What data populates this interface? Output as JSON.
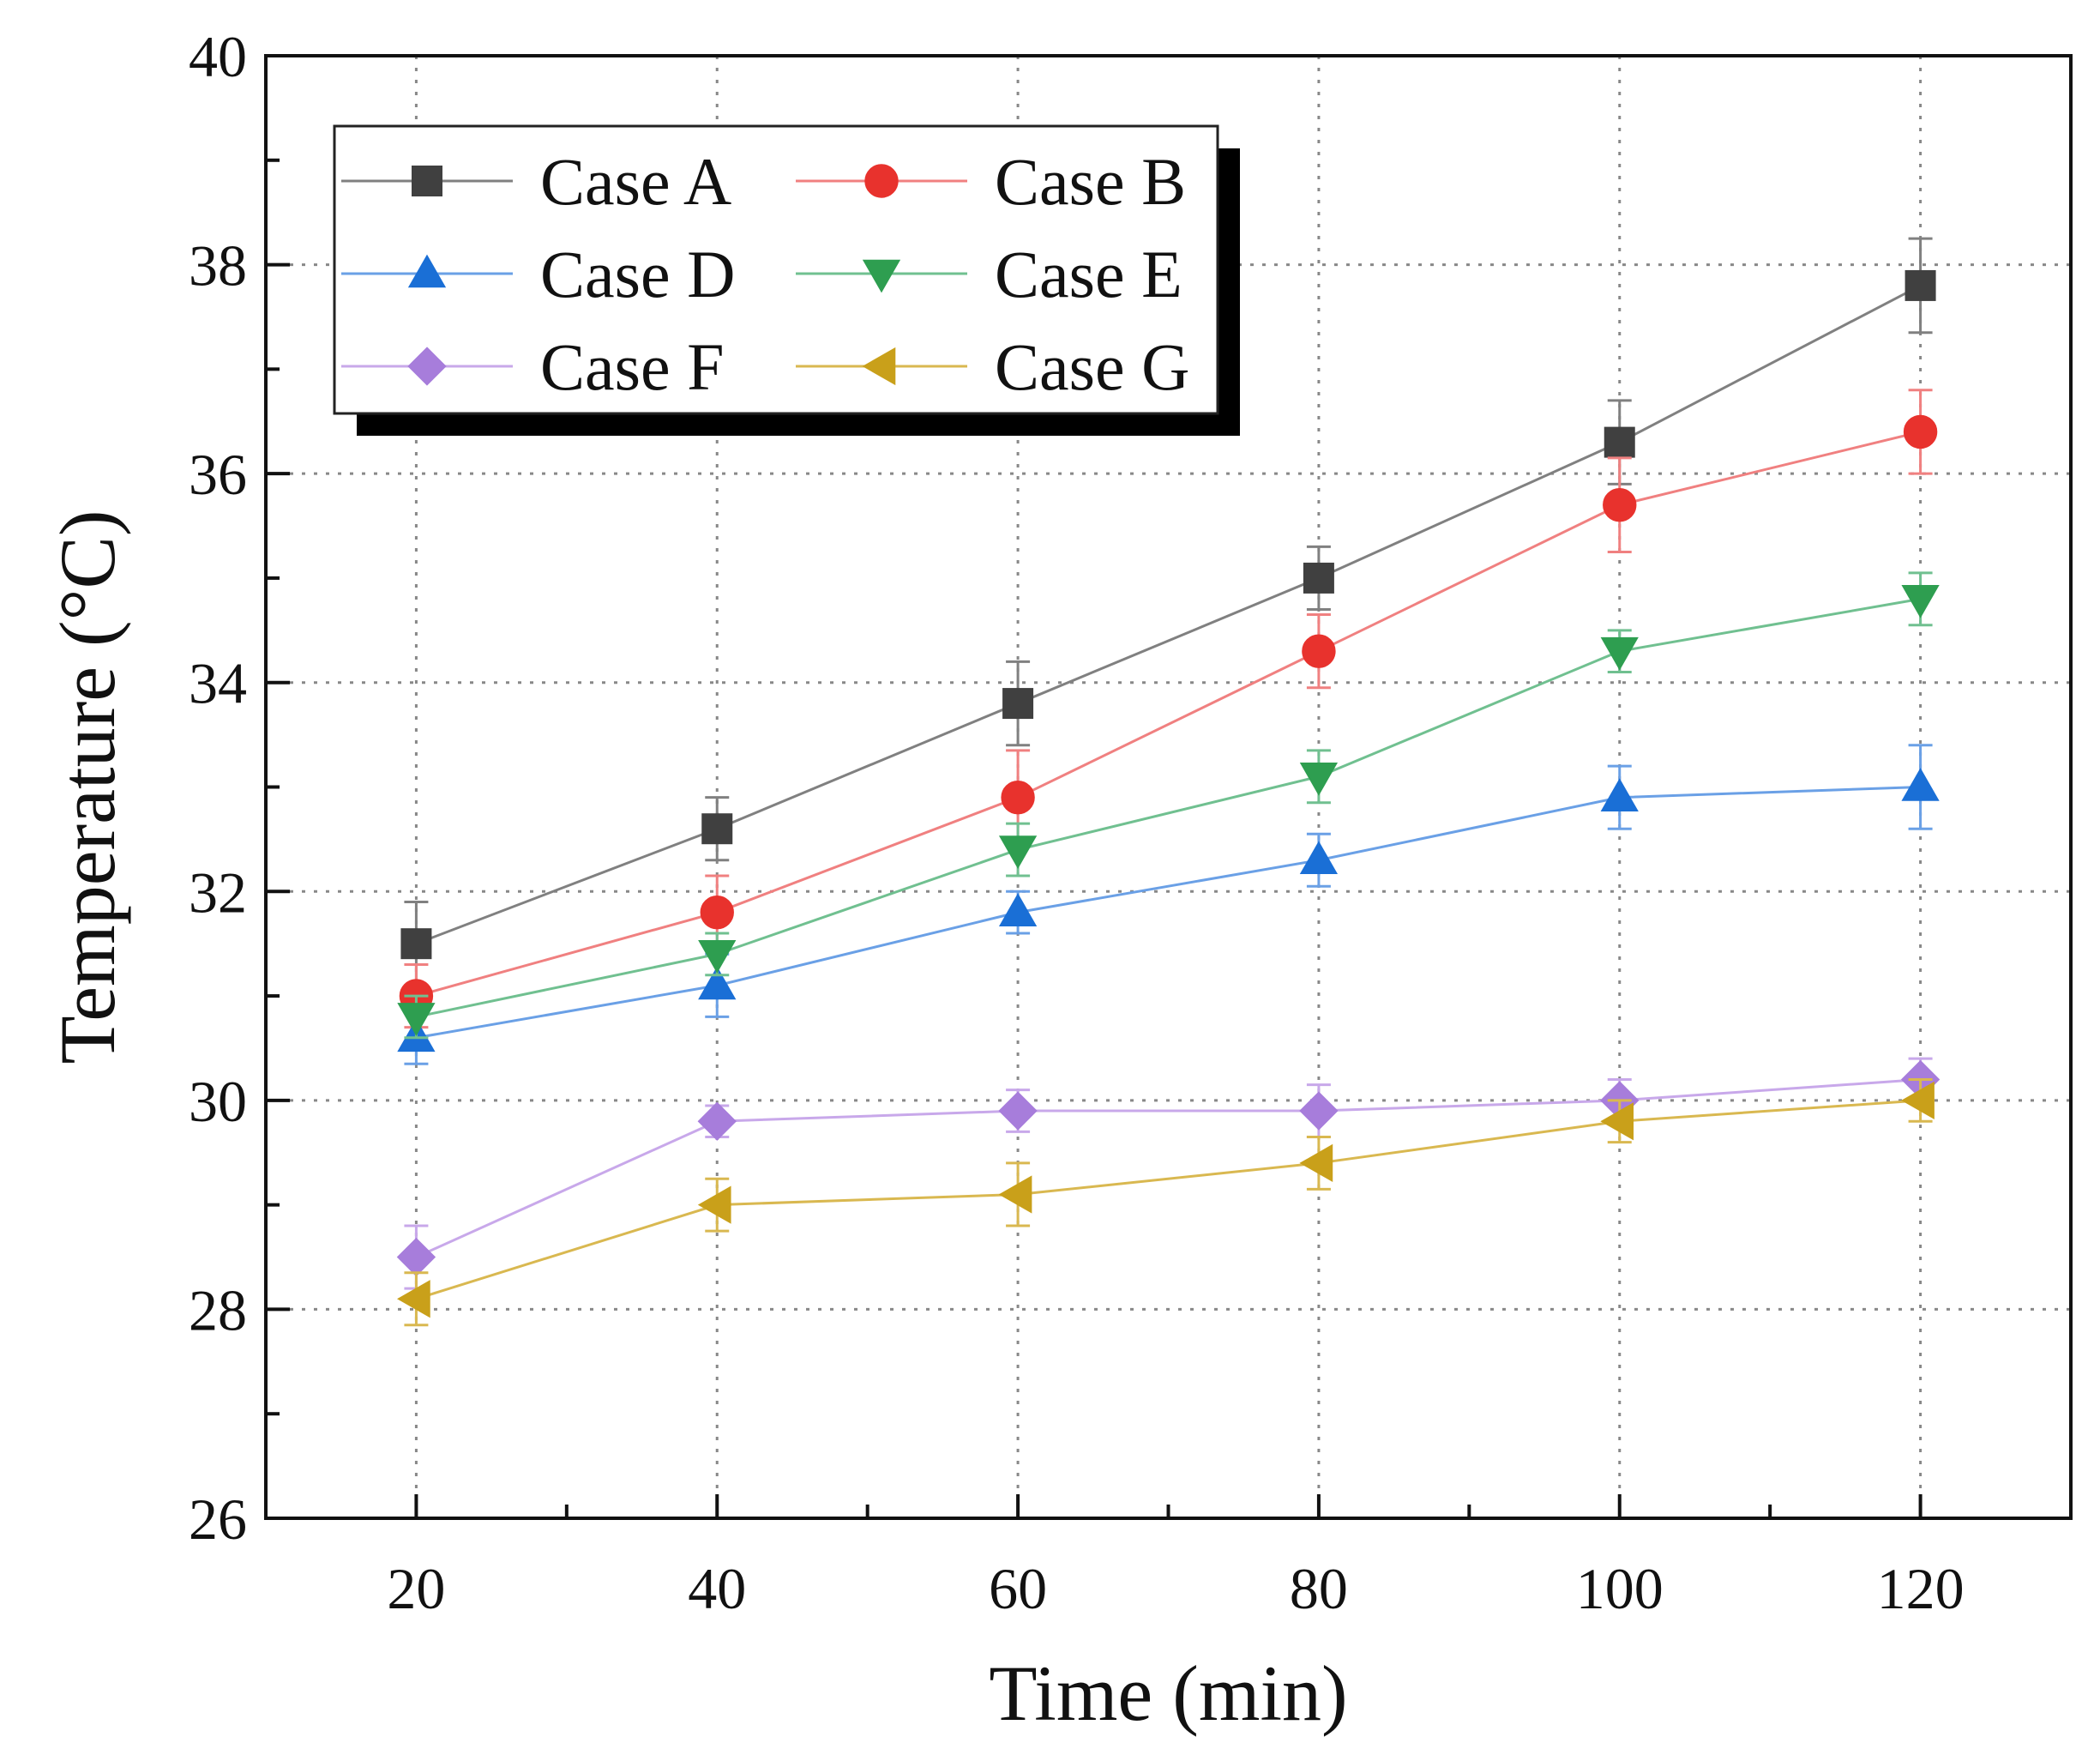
{
  "chart_data": {
    "type": "line",
    "xlabel": "Time (min)",
    "ylabel": "Temperature (°C)",
    "xlim": [
      10,
      130
    ],
    "ylim": [
      26,
      40
    ],
    "x_ticks": [
      20,
      40,
      60,
      80,
      100,
      120
    ],
    "y_ticks": [
      26,
      28,
      30,
      32,
      34,
      36,
      38,
      40
    ],
    "x_minor_ticks": [
      10,
      30,
      50,
      70,
      90,
      110,
      130
    ],
    "y_minor_ticks": [
      27,
      29,
      31,
      33,
      35,
      37,
      39
    ],
    "grid": true,
    "legend_position": "top-left",
    "x": [
      20,
      40,
      60,
      80,
      100,
      120
    ],
    "series": [
      {
        "name": "Case A",
        "marker": "square",
        "color": "#404040",
        "line_color": "#808080",
        "values": [
          31.5,
          32.6,
          33.8,
          35.0,
          36.3,
          37.8
        ],
        "errors": [
          0.4,
          0.3,
          0.4,
          0.3,
          0.4,
          0.45
        ]
      },
      {
        "name": "Case B",
        "marker": "circle",
        "color": "#e8322d",
        "line_color": "#f08080",
        "values": [
          31.0,
          31.8,
          32.9,
          34.3,
          35.7,
          36.4
        ],
        "errors": [
          0.3,
          0.35,
          0.45,
          0.35,
          0.45,
          0.4
        ]
      },
      {
        "name": "Case D",
        "marker": "triangle-up",
        "color": "#1a6fd6",
        "line_color": "#6aa0e6",
        "values": [
          30.6,
          31.1,
          31.8,
          32.3,
          32.9,
          33.0
        ],
        "errors": [
          0.25,
          0.3,
          0.2,
          0.25,
          0.3,
          0.4
        ]
      },
      {
        "name": "Case E",
        "marker": "triangle-down",
        "color": "#2e9e50",
        "line_color": "#70c090",
        "values": [
          30.8,
          31.4,
          32.4,
          33.1,
          34.3,
          34.8
        ],
        "errors": [
          0.2,
          0.2,
          0.25,
          0.25,
          0.2,
          0.25
        ]
      },
      {
        "name": "Case F",
        "marker": "diamond",
        "color": "#a77ddb",
        "line_color": "#c8a8ea",
        "values": [
          28.5,
          29.8,
          29.9,
          29.9,
          30.0,
          30.2
        ],
        "errors": [
          0.3,
          0.15,
          0.2,
          0.25,
          0.2,
          0.2
        ]
      },
      {
        "name": "Case G",
        "marker": "triangle-left",
        "color": "#c9a01a",
        "line_color": "#d9b850",
        "values": [
          28.1,
          29.0,
          29.1,
          29.4,
          29.8,
          30.0
        ],
        "errors": [
          0.25,
          0.25,
          0.3,
          0.25,
          0.2,
          0.2
        ]
      }
    ]
  }
}
